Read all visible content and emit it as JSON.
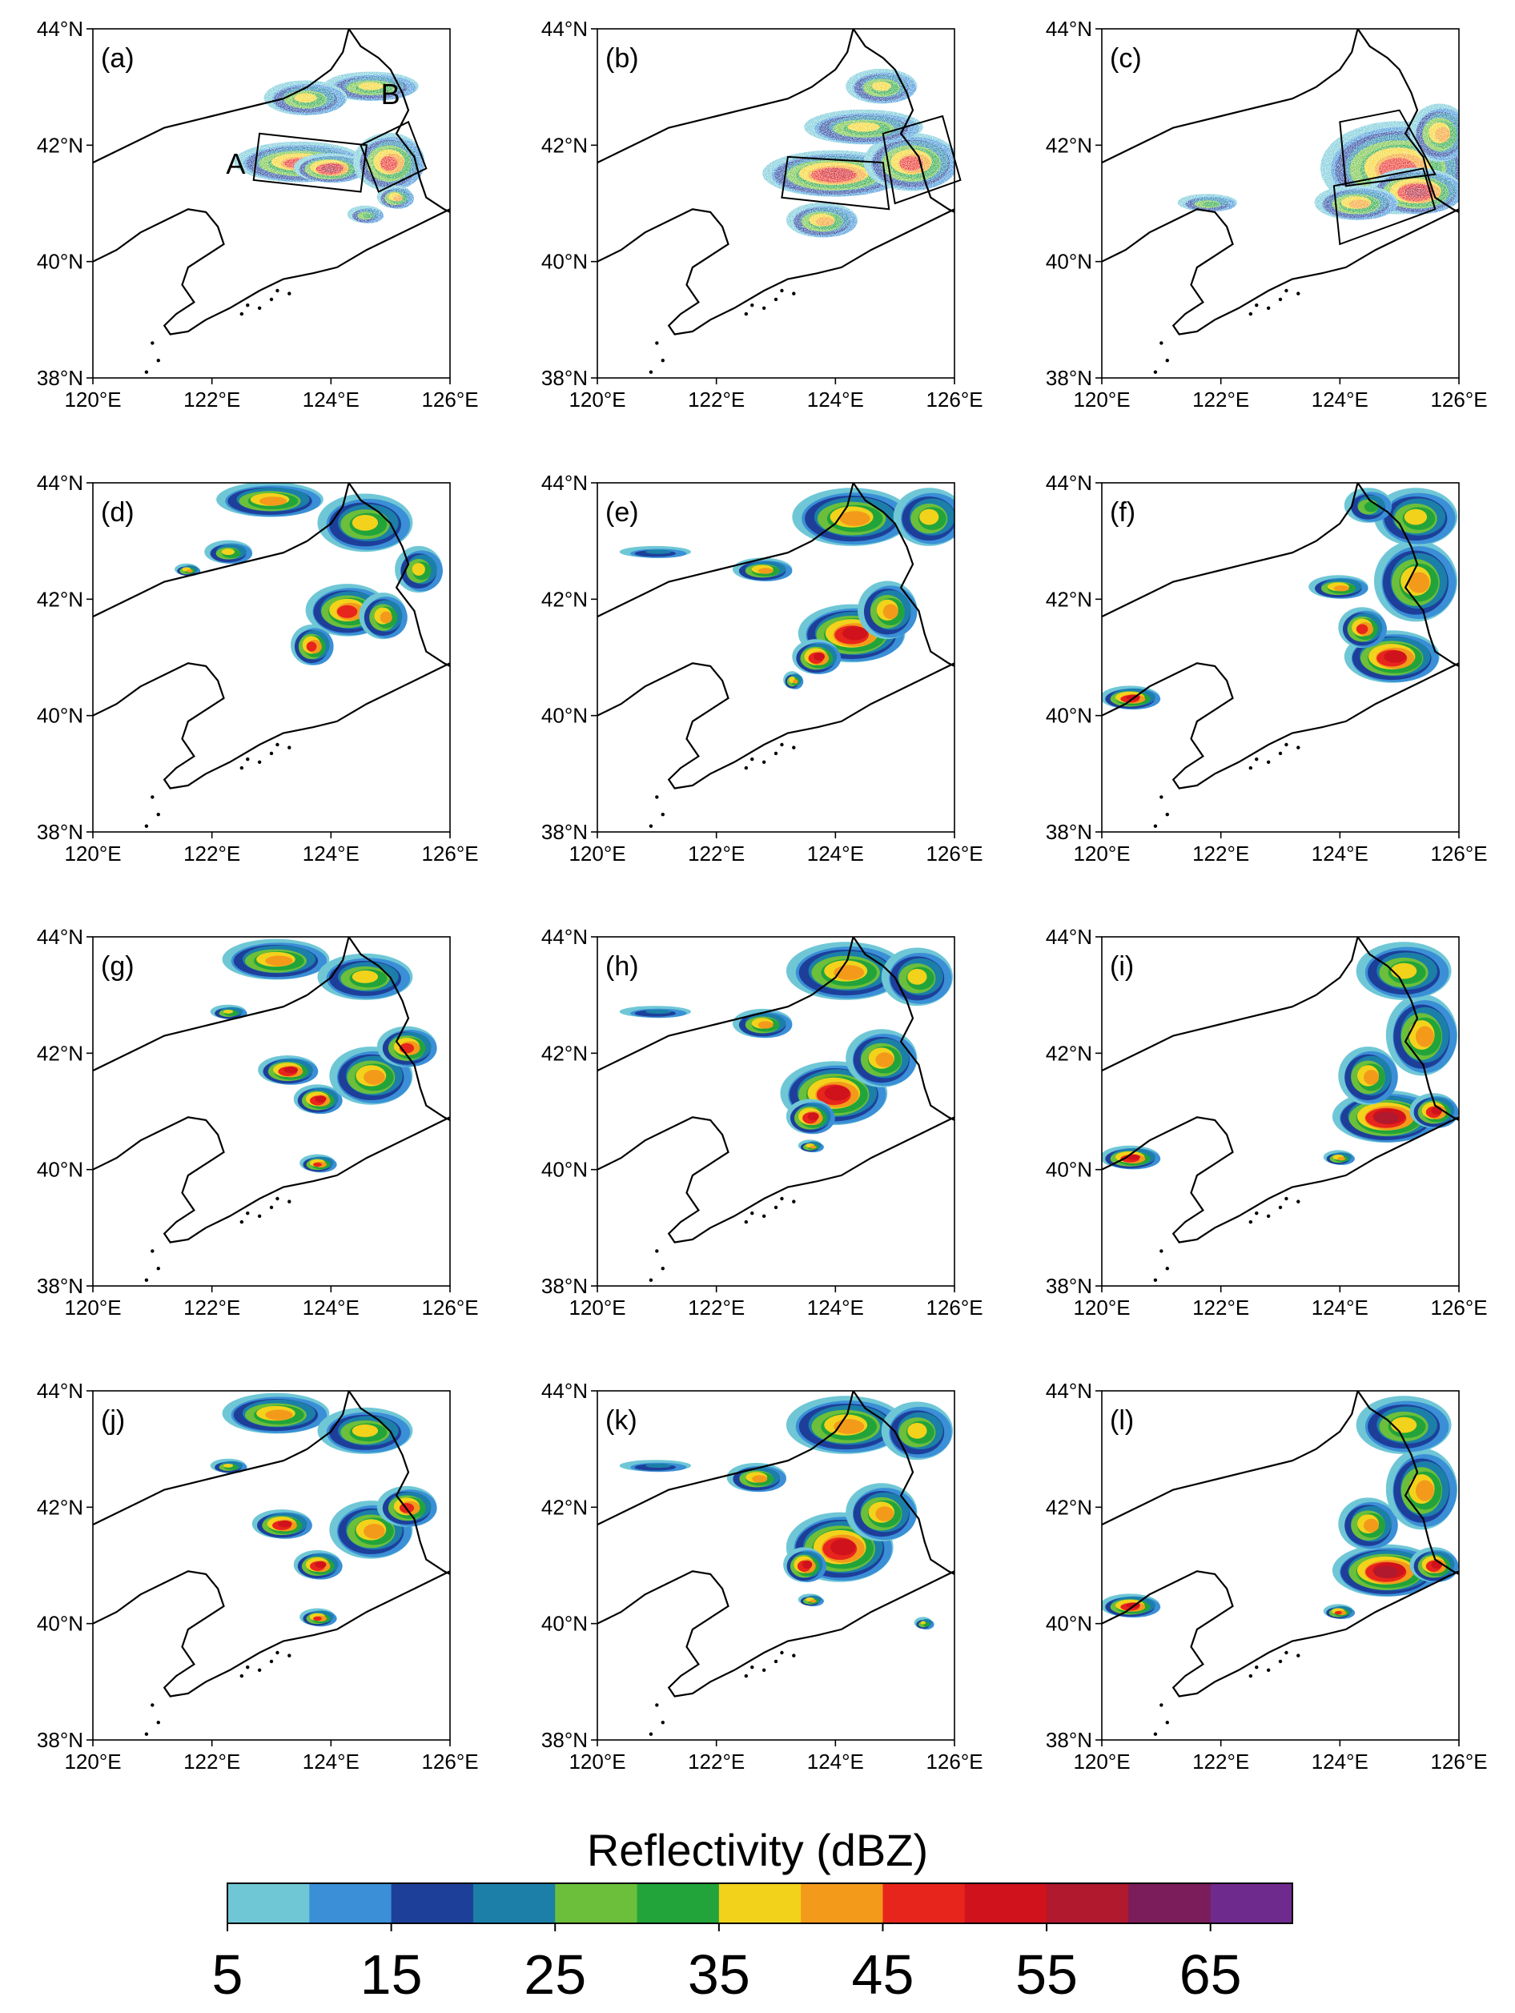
{
  "figure": {
    "panels": [
      {
        "id": "a",
        "label": "(a)",
        "type": "obs",
        "region_labels": [
          {
            "text": "A",
            "lon": 122.4,
            "lat": 41.7
          },
          {
            "text": "B",
            "lon": 125.0,
            "lat": 42.9
          }
        ],
        "boxes": [
          [
            [
              122.8,
              42.2
            ],
            [
              124.6,
              42.0
            ],
            [
              124.5,
              41.2
            ],
            [
              122.7,
              41.4
            ]
          ],
          [
            [
              124.5,
              42.0
            ],
            [
              125.3,
              42.4
            ],
            [
              125.6,
              41.6
            ],
            [
              124.8,
              41.2
            ]
          ]
        ],
        "cells": [
          [
            123.5,
            41.7,
            1.1,
            0.35,
            48
          ],
          [
            124.0,
            41.6,
            0.6,
            0.25,
            55
          ],
          [
            125.0,
            41.7,
            0.6,
            0.5,
            45
          ],
          [
            124.7,
            43.0,
            0.8,
            0.25,
            35
          ],
          [
            123.6,
            42.8,
            0.7,
            0.3,
            35
          ],
          [
            124.6,
            40.8,
            0.3,
            0.15,
            30
          ],
          [
            125.1,
            41.1,
            0.3,
            0.2,
            40
          ]
        ]
      },
      {
        "id": "b",
        "label": "(b)",
        "type": "obs",
        "region_labels": [],
        "boxes": [
          [
            [
              123.2,
              41.8
            ],
            [
              124.8,
              41.7
            ],
            [
              124.9,
              40.9
            ],
            [
              123.1,
              41.1
            ]
          ],
          [
            [
              124.8,
              42.2
            ],
            [
              125.8,
              42.5
            ],
            [
              126.1,
              41.4
            ],
            [
              125.0,
              41.0
            ]
          ]
        ],
        "cells": [
          [
            124.0,
            41.5,
            1.2,
            0.4,
            50
          ],
          [
            125.3,
            41.7,
            0.8,
            0.5,
            45
          ],
          [
            124.5,
            42.3,
            1.0,
            0.3,
            35
          ],
          [
            124.8,
            43.0,
            0.6,
            0.3,
            35
          ],
          [
            123.8,
            40.7,
            0.6,
            0.3,
            40
          ]
        ]
      },
      {
        "id": "c",
        "label": "(c)",
        "type": "obs",
        "region_labels": [],
        "boxes": [
          [
            [
              124.0,
              42.4
            ],
            [
              125.0,
              42.6
            ],
            [
              125.6,
              41.5
            ],
            [
              124.1,
              41.3
            ]
          ],
          [
            [
              123.9,
              41.3
            ],
            [
              125.4,
              41.6
            ],
            [
              125.6,
              40.9
            ],
            [
              124.0,
              40.3
            ]
          ]
        ],
        "cells": [
          [
            125.0,
            41.6,
            1.3,
            0.8,
            45
          ],
          [
            125.3,
            41.2,
            0.8,
            0.4,
            55
          ],
          [
            124.3,
            41.0,
            0.7,
            0.3,
            40
          ],
          [
            125.7,
            42.2,
            0.5,
            0.5,
            40
          ],
          [
            121.8,
            41.0,
            0.5,
            0.15,
            30
          ]
        ]
      },
      {
        "id": "d",
        "label": "(d)",
        "type": "model",
        "region_labels": [],
        "boxes": [],
        "cells": [
          [
            124.3,
            41.8,
            0.7,
            0.45,
            45
          ],
          [
            123.7,
            41.2,
            0.35,
            0.35,
            45
          ],
          [
            124.9,
            41.7,
            0.4,
            0.4,
            40
          ],
          [
            123.0,
            43.7,
            0.9,
            0.3,
            40
          ],
          [
            124.6,
            43.3,
            0.8,
            0.5,
            35
          ],
          [
            122.3,
            42.8,
            0.4,
            0.2,
            35
          ],
          [
            121.6,
            42.5,
            0.2,
            0.1,
            40
          ],
          [
            125.5,
            42.5,
            0.4,
            0.4,
            35
          ]
        ]
      },
      {
        "id": "e",
        "label": "(e)",
        "type": "model",
        "region_labels": [],
        "boxes": [],
        "cells": [
          [
            124.3,
            41.4,
            0.9,
            0.5,
            50
          ],
          [
            123.7,
            41.0,
            0.4,
            0.3,
            50
          ],
          [
            124.9,
            41.8,
            0.5,
            0.5,
            40
          ],
          [
            124.3,
            43.4,
            1.0,
            0.5,
            40
          ],
          [
            122.8,
            42.5,
            0.5,
            0.2,
            40
          ],
          [
            123.3,
            40.6,
            0.15,
            0.15,
            40
          ],
          [
            125.6,
            43.4,
            0.6,
            0.5,
            35
          ],
          [
            121.0,
            42.8,
            0.6,
            0.1,
            20
          ]
        ]
      },
      {
        "id": "f",
        "label": "(f)",
        "type": "model",
        "region_labels": [],
        "boxes": [],
        "cells": [
          [
            124.9,
            41.0,
            0.8,
            0.45,
            50
          ],
          [
            124.4,
            41.5,
            0.4,
            0.35,
            45
          ],
          [
            125.3,
            42.3,
            0.7,
            0.7,
            40
          ],
          [
            124.0,
            42.2,
            0.5,
            0.2,
            40
          ],
          [
            125.3,
            43.4,
            0.7,
            0.5,
            35
          ],
          [
            120.5,
            40.3,
            0.5,
            0.2,
            50
          ],
          [
            124.5,
            43.6,
            0.4,
            0.3,
            30
          ]
        ]
      },
      {
        "id": "g",
        "label": "(g)",
        "type": "model",
        "region_labels": [],
        "boxes": [],
        "cells": [
          [
            123.3,
            41.7,
            0.5,
            0.25,
            50
          ],
          [
            123.8,
            41.2,
            0.4,
            0.25,
            50
          ],
          [
            124.7,
            41.6,
            0.7,
            0.5,
            40
          ],
          [
            125.3,
            42.1,
            0.5,
            0.35,
            45
          ],
          [
            123.1,
            43.6,
            0.9,
            0.35,
            40
          ],
          [
            124.6,
            43.3,
            0.8,
            0.4,
            35
          ],
          [
            123.8,
            40.1,
            0.3,
            0.15,
            45
          ],
          [
            122.3,
            42.7,
            0.3,
            0.12,
            35
          ]
        ]
      },
      {
        "id": "h",
        "label": "(h)",
        "type": "model",
        "region_labels": [],
        "boxes": [],
        "cells": [
          [
            124.0,
            41.3,
            0.9,
            0.55,
            50
          ],
          [
            123.6,
            40.9,
            0.4,
            0.3,
            50
          ],
          [
            124.8,
            41.9,
            0.6,
            0.5,
            40
          ],
          [
            124.2,
            43.4,
            1.0,
            0.5,
            40
          ],
          [
            122.8,
            42.5,
            0.5,
            0.25,
            40
          ],
          [
            125.4,
            43.3,
            0.6,
            0.5,
            35
          ],
          [
            121.0,
            42.7,
            0.6,
            0.1,
            20
          ],
          [
            123.6,
            40.4,
            0.2,
            0.1,
            40
          ]
        ]
      },
      {
        "id": "i",
        "label": "(i)",
        "type": "model",
        "region_labels": [],
        "boxes": [],
        "cells": [
          [
            124.8,
            40.9,
            0.9,
            0.45,
            55
          ],
          [
            124.5,
            41.6,
            0.5,
            0.5,
            40
          ],
          [
            125.4,
            42.3,
            0.6,
            0.7,
            40
          ],
          [
            125.1,
            43.4,
            0.8,
            0.5,
            35
          ],
          [
            120.5,
            40.2,
            0.5,
            0.2,
            50
          ],
          [
            124.0,
            40.2,
            0.25,
            0.12,
            40
          ],
          [
            125.6,
            41.0,
            0.4,
            0.3,
            50
          ]
        ]
      },
      {
        "id": "j",
        "label": "(j)",
        "type": "model",
        "region_labels": [],
        "boxes": [],
        "cells": [
          [
            123.2,
            41.7,
            0.5,
            0.25,
            50
          ],
          [
            123.8,
            41.0,
            0.4,
            0.25,
            50
          ],
          [
            124.7,
            41.6,
            0.7,
            0.5,
            40
          ],
          [
            125.3,
            42.0,
            0.5,
            0.35,
            45
          ],
          [
            123.1,
            43.6,
            0.9,
            0.35,
            40
          ],
          [
            124.6,
            43.3,
            0.8,
            0.4,
            35
          ],
          [
            123.8,
            40.1,
            0.3,
            0.15,
            45
          ],
          [
            122.3,
            42.7,
            0.3,
            0.12,
            35
          ]
        ]
      },
      {
        "id": "k",
        "label": "(k)",
        "type": "model",
        "region_labels": [],
        "boxes": [],
        "cells": [
          [
            124.1,
            41.3,
            0.9,
            0.6,
            50
          ],
          [
            123.5,
            41.0,
            0.35,
            0.3,
            50
          ],
          [
            124.8,
            41.9,
            0.6,
            0.5,
            40
          ],
          [
            124.2,
            43.4,
            1.0,
            0.5,
            40
          ],
          [
            122.7,
            42.5,
            0.5,
            0.25,
            40
          ],
          [
            125.4,
            43.3,
            0.6,
            0.5,
            35
          ],
          [
            121.0,
            42.7,
            0.6,
            0.1,
            20
          ],
          [
            123.6,
            40.4,
            0.2,
            0.1,
            40
          ],
          [
            125.5,
            40.0,
            0.15,
            0.1,
            35
          ]
        ]
      },
      {
        "id": "l",
        "label": "(l)",
        "type": "model",
        "region_labels": [],
        "boxes": [],
        "cells": [
          [
            124.8,
            40.9,
            0.9,
            0.45,
            55
          ],
          [
            124.5,
            41.7,
            0.5,
            0.45,
            40
          ],
          [
            125.4,
            42.3,
            0.6,
            0.7,
            40
          ],
          [
            125.1,
            43.4,
            0.8,
            0.5,
            35
          ],
          [
            120.5,
            40.3,
            0.5,
            0.2,
            50
          ],
          [
            124.0,
            40.2,
            0.25,
            0.12,
            45
          ],
          [
            125.6,
            41.0,
            0.4,
            0.3,
            50
          ]
        ]
      }
    ],
    "axes": {
      "lon_range": [
        120,
        126
      ],
      "lat_range": [
        38,
        44
      ],
      "x_ticks": [
        "120°E",
        "122°E",
        "124°E",
        "126°E"
      ],
      "x_tick_values": [
        120,
        122,
        124,
        126
      ],
      "y_ticks": [
        "38°N",
        "40°N",
        "42°N",
        "44°N"
      ],
      "y_tick_values": [
        38,
        40,
        42,
        44
      ]
    },
    "colorbar": {
      "title": "Reflectivity (dBZ)",
      "bounds": [
        5,
        10,
        15,
        20,
        25,
        30,
        35,
        40,
        45,
        50,
        55,
        60,
        65,
        70
      ],
      "colors": [
        "#6fc7d6",
        "#3a8fd6",
        "#1d3f9a",
        "#1b7fa8",
        "#6bbf3a",
        "#22a43a",
        "#f3d21c",
        "#f39a1b",
        "#e8251c",
        "#cf121c",
        "#b0192e",
        "#7a1d5a",
        "#6f2a8e"
      ],
      "tick_labels": [
        "5",
        "15",
        "25",
        "35",
        "45",
        "55",
        "65"
      ],
      "tick_values": [
        5,
        15,
        25,
        35,
        45,
        55,
        65
      ]
    }
  }
}
